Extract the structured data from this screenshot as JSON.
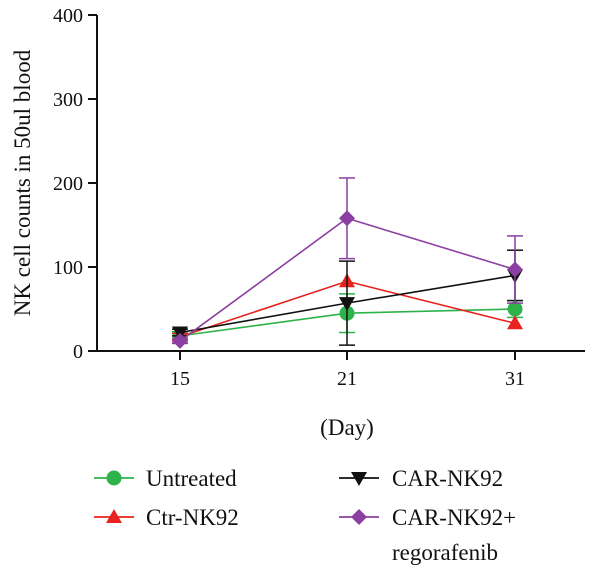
{
  "chart_data": {
    "type": "line",
    "title": "",
    "xlabel": "(Day)",
    "ylabel": "NK cell counts in 50ul blood",
    "x": [
      15,
      21,
      31
    ],
    "x_tick_labels": [
      "15",
      "21",
      "31"
    ],
    "ylim": [
      0,
      400
    ],
    "y_ticks": [
      0,
      100,
      200,
      300,
      400
    ],
    "grid": false,
    "legend_position": "bottom",
    "series": [
      {
        "name": "Untreated",
        "color": "#2db34a",
        "marker": "circle",
        "values": [
          18,
          45,
          50
        ],
        "error": [
          5,
          23,
          10
        ]
      },
      {
        "name": "Ctr-NK92",
        "color": "#e8231f",
        "marker": "triangle-up",
        "values": [
          17,
          83,
          33
        ],
        "error": [
          4,
          0,
          0
        ]
      },
      {
        "name": "CAR-NK92",
        "color": "#111111",
        "marker": "triangle-down",
        "values": [
          22,
          57,
          90
        ],
        "error": [
          4,
          50,
          30
        ]
      },
      {
        "name": "CAR-NK92+\nregorafenib",
        "name_lines": [
          "CAR-NK92+",
          "regorafenib"
        ],
        "color": "#8b3fa0",
        "marker": "diamond",
        "values": [
          12,
          158,
          97
        ],
        "error": [
          3,
          48,
          40
        ]
      }
    ]
  }
}
